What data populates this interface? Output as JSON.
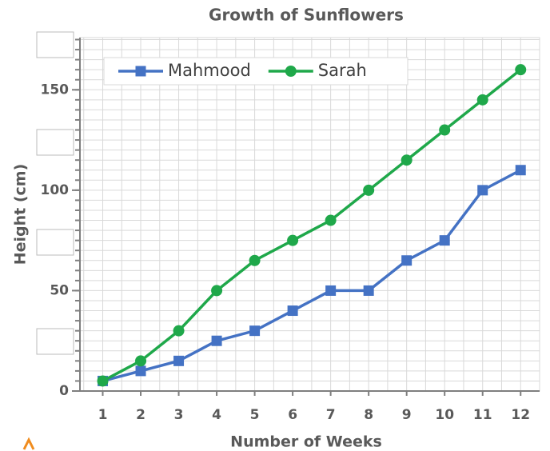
{
  "chart_data": {
    "type": "line",
    "title": "Growth of Sunflowers",
    "x_label": "Number of Weeks",
    "y_label": "Height (cm)",
    "x": [
      1,
      2,
      3,
      4,
      5,
      6,
      7,
      8,
      9,
      10,
      11,
      12
    ],
    "series": [
      {
        "name": "Mahmood",
        "color": "#4472c4",
        "marker": "square",
        "values": [
          5,
          10,
          15,
          25,
          30,
          40,
          50,
          50,
          65,
          75,
          100,
          110
        ]
      },
      {
        "name": "Sarah",
        "color": "#1fa84a",
        "marker": "circle",
        "values": [
          5,
          15,
          30,
          50,
          65,
          75,
          85,
          100,
          115,
          130,
          145,
          160
        ]
      }
    ],
    "xlim": [
      0.4,
      12.5
    ],
    "xticks": [
      1,
      2,
      3,
      4,
      5,
      6,
      7,
      8,
      9,
      10,
      11,
      12
    ],
    "ylim": [
      0,
      176
    ],
    "yticks": [
      0,
      50,
      100,
      150
    ],
    "grid": true,
    "x_minor_step": 0.5,
    "y_minor_step": 5,
    "legend": "top"
  }
}
